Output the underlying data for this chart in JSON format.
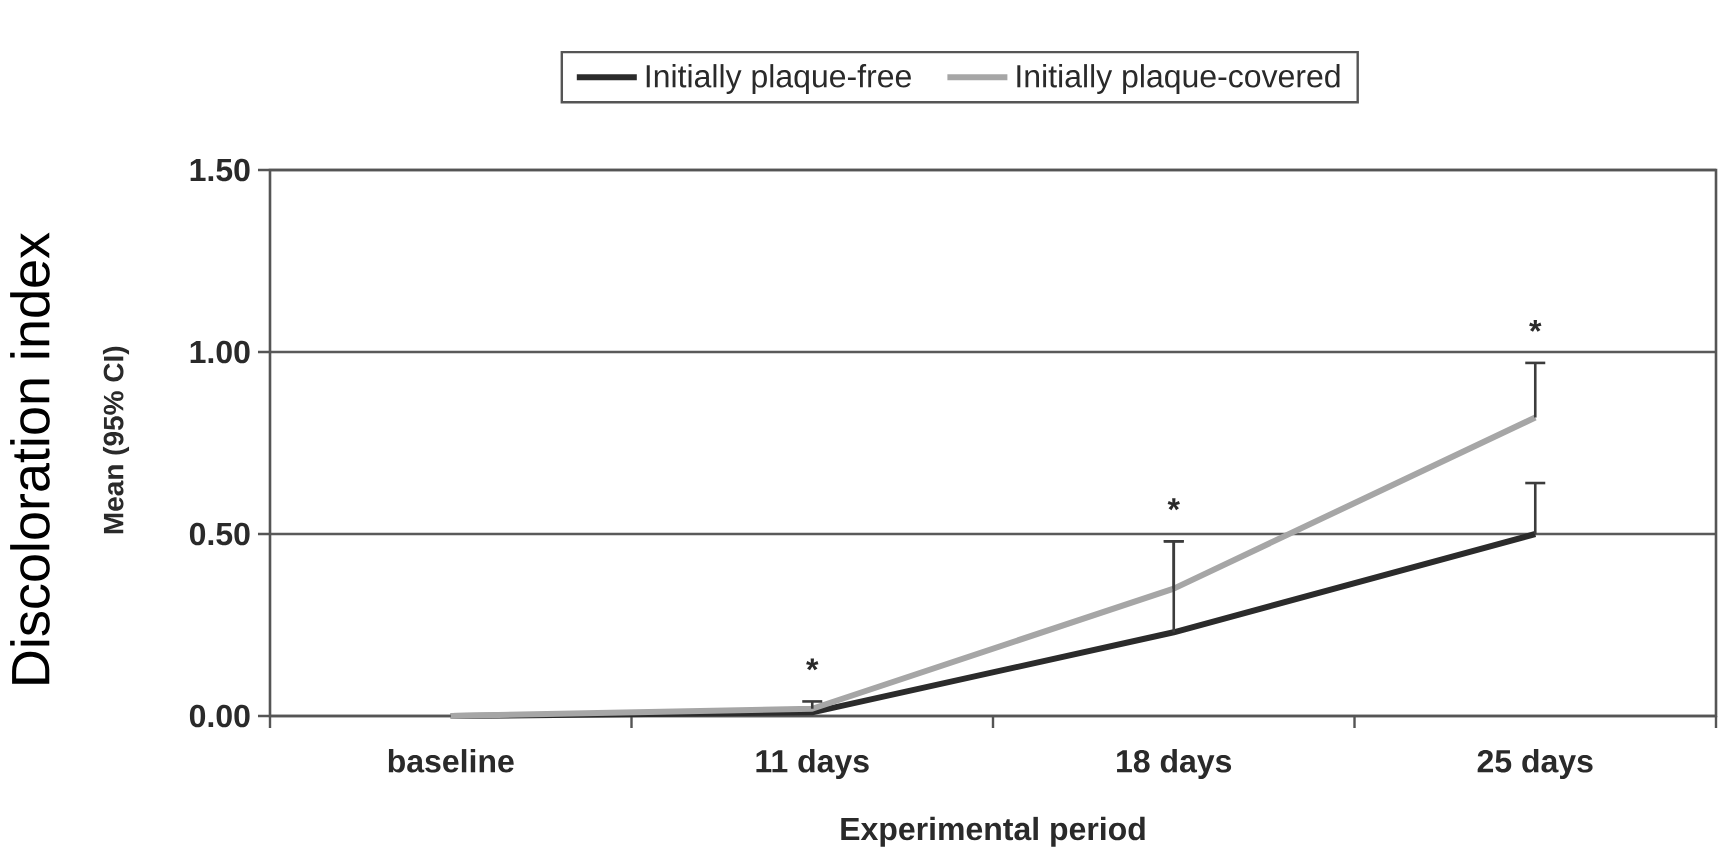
{
  "chart_data": {
    "type": "line",
    "xlabel": "Experimental period",
    "ylabel": "Mean (95% CI)",
    "annotations": [
      "Discoloration index",
      "*",
      "*",
      "*"
    ],
    "categories": [
      "baseline",
      "11 days",
      "18 days",
      "25 days"
    ],
    "series": [
      {
        "name": "Initially plaque-free",
        "color": "#2b2b2b",
        "values": [
          0,
          0.01,
          0.23,
          0.5
        ],
        "errors": [
          null,
          null,
          [
            0.23,
            0.48
          ],
          [
            0.5,
            0.64
          ]
        ]
      },
      {
        "name": "Initially plaque-covered",
        "color": "#a6a6a6",
        "values": [
          0,
          0.02,
          0.35,
          0.82
        ],
        "errors": [
          null,
          [
            0.02,
            0.04
          ],
          [
            0.35,
            0.48
          ],
          [
            0.82,
            0.97
          ]
        ]
      }
    ],
    "ylim": [
      0,
      1.5
    ],
    "yticks": [
      {
        "value": 0,
        "label": "0.00"
      },
      {
        "value": 0.5,
        "label": "0.50"
      },
      {
        "value": 1,
        "label": "1.00"
      },
      {
        "value": 1.5,
        "label": "1.50"
      }
    ],
    "grid": "y",
    "legend": "top"
  }
}
